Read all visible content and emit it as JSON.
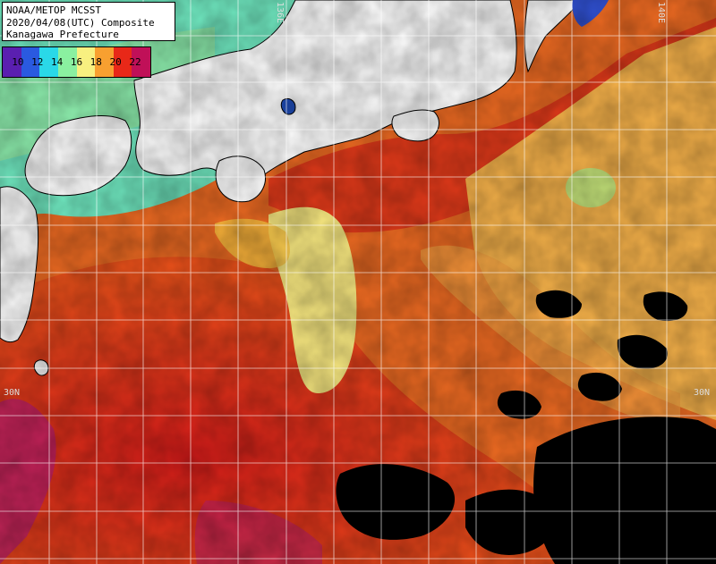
{
  "title": {
    "line1": "NOAA/METOP MCSST",
    "line2": "2020/04/08(UTC) Composite",
    "line3": "Kanagawa Prefecture"
  },
  "legend": {
    "ticks": [
      "10",
      "12",
      "14",
      "16",
      "18",
      "20",
      "22"
    ],
    "colors": [
      "#5a1fb0",
      "#2a5ae0",
      "#2ad8e8",
      "#8af0a0",
      "#f8f080",
      "#f8a030",
      "#e82818",
      "#c01058"
    ]
  },
  "grid_labels": {
    "lat_left": "30N",
    "lat_right": "30N",
    "lon_top_1": "136E",
    "lon_top_2": "140E"
  },
  "colors": {
    "land": "#ffffff",
    "cloud": "#000000",
    "warm": "#e8401a",
    "hot": "#d8201a",
    "cool": "#f8e070",
    "coast": "#70e8d0",
    "grid": "#ffffff"
  }
}
